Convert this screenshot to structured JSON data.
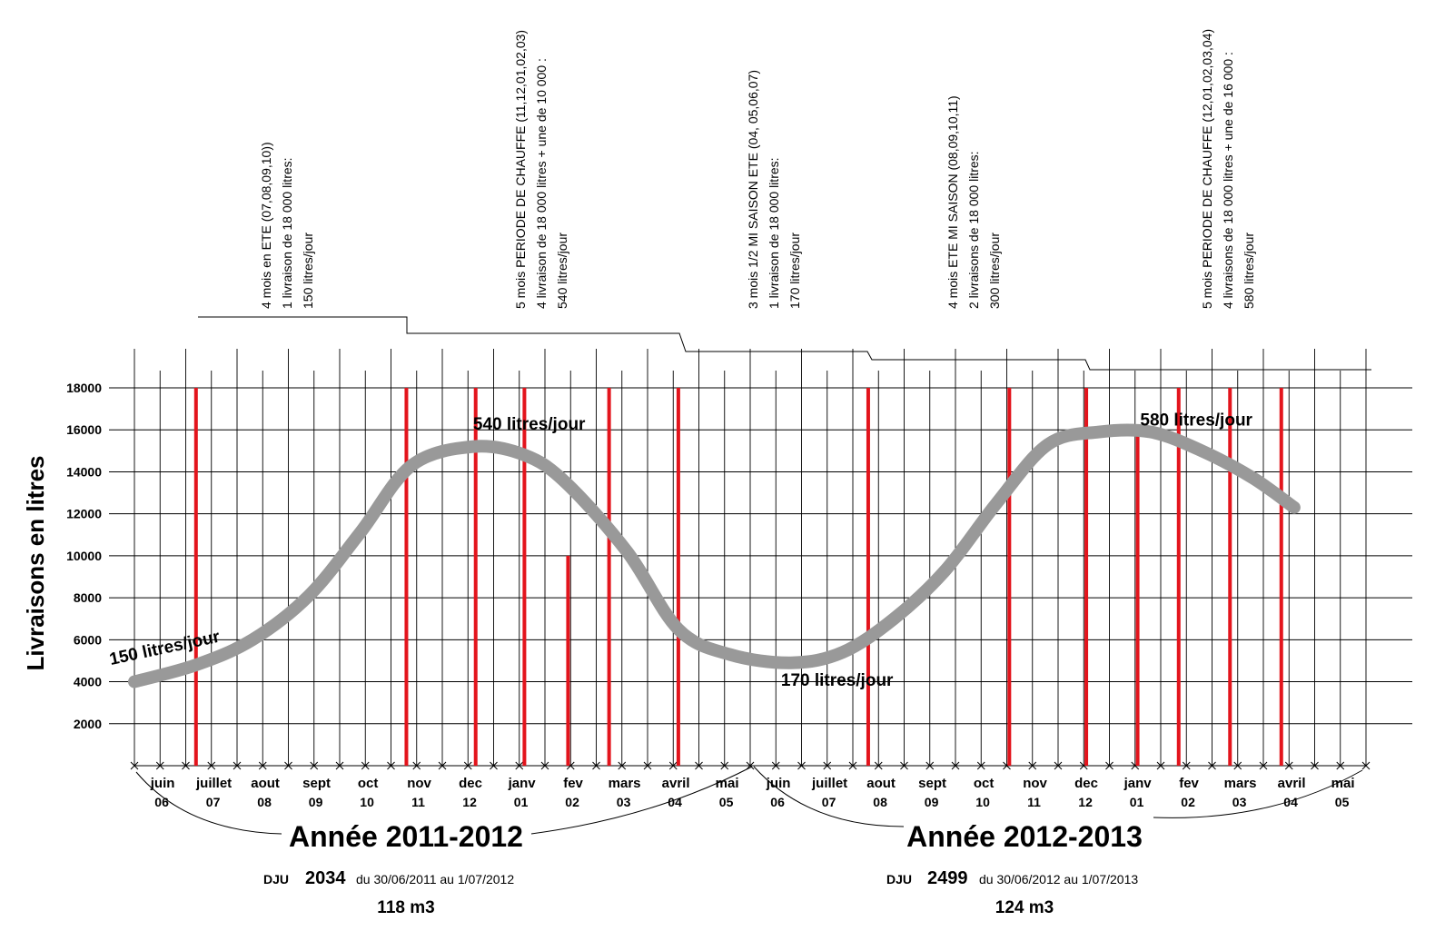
{
  "chart_data": {
    "type": "line",
    "ylabel": "Livraisons en litres",
    "xlabel": "",
    "title": "",
    "ylim": [
      0,
      18000
    ],
    "y_ticks": [
      2000,
      4000,
      6000,
      8000,
      10000,
      12000,
      14000,
      16000,
      18000
    ],
    "grid": true,
    "categories": [
      {
        "month": "juin",
        "num": "06"
      },
      {
        "month": "juillet",
        "num": "07"
      },
      {
        "month": "aout",
        "num": "08"
      },
      {
        "month": "sept",
        "num": "09"
      },
      {
        "month": "oct",
        "num": "10"
      },
      {
        "month": "nov",
        "num": "11"
      },
      {
        "month": "dec",
        "num": "12"
      },
      {
        "month": "janv",
        "num": "01"
      },
      {
        "month": "fev",
        "num": "02"
      },
      {
        "month": "mars",
        "num": "03"
      },
      {
        "month": "avril",
        "num": "04"
      },
      {
        "month": "mai",
        "num": "05"
      },
      {
        "month": "juin",
        "num": "06"
      },
      {
        "month": "juillet",
        "num": "07"
      },
      {
        "month": "aout",
        "num": "08"
      },
      {
        "month": "sept",
        "num": "09"
      },
      {
        "month": "oct",
        "num": "10"
      },
      {
        "month": "nov",
        "num": "11"
      },
      {
        "month": "dec",
        "num": "12"
      },
      {
        "month": "janv",
        "num": "01"
      },
      {
        "month": "fev",
        "num": "02"
      },
      {
        "month": "mars",
        "num": "03"
      },
      {
        "month": "avril",
        "num": "04"
      },
      {
        "month": "mai",
        "num": "05"
      }
    ],
    "series": [
      {
        "color": "#999999",
        "points": [
          [
            0.0,
            4000
          ],
          [
            1.2,
            4800
          ],
          [
            2.3,
            6000
          ],
          [
            3.4,
            8100
          ],
          [
            4.4,
            11100
          ],
          [
            5.4,
            14300
          ],
          [
            6.6,
            15200
          ],
          [
            7.6,
            14800
          ],
          [
            8.4,
            13500
          ],
          [
            9.6,
            10200
          ],
          [
            10.6,
            6500
          ],
          [
            11.6,
            5300
          ],
          [
            12.8,
            4900
          ],
          [
            13.8,
            5400
          ],
          [
            14.8,
            7000
          ],
          [
            15.8,
            9300
          ],
          [
            16.8,
            12500
          ],
          [
            17.8,
            15300
          ],
          [
            18.8,
            15900
          ],
          [
            19.8,
            15900
          ],
          [
            20.8,
            15000
          ],
          [
            21.8,
            13700
          ],
          [
            22.6,
            12300
          ]
        ]
      }
    ],
    "deliveries": [
      {
        "x": 1.2,
        "value": 18000
      },
      {
        "x": 5.3,
        "value": 18000
      },
      {
        "x": 6.65,
        "value": 18000
      },
      {
        "x": 7.6,
        "value": 18000
      },
      {
        "x": 8.45,
        "value": 10000
      },
      {
        "x": 9.25,
        "value": 18000
      },
      {
        "x": 10.6,
        "value": 18000
      },
      {
        "x": 14.3,
        "value": 18000
      },
      {
        "x": 17.05,
        "value": 18000
      },
      {
        "x": 18.55,
        "value": 18000
      },
      {
        "x": 19.55,
        "value": 16000
      },
      {
        "x": 20.35,
        "value": 18000
      },
      {
        "x": 21.35,
        "value": 18000
      },
      {
        "x": 22.35,
        "value": 18000
      }
    ],
    "rate_labels": [
      {
        "text": "150 litres/jour",
        "x": 0.0,
        "y": 4800
      },
      {
        "text": "540 litres/jour",
        "x": 6.6,
        "y": 16000
      },
      {
        "text": "170 litres/jour",
        "x": 12.6,
        "y": 3800
      },
      {
        "text": "580 litres/jour",
        "x": 19.6,
        "y": 16200
      }
    ],
    "periods": [
      {
        "lines": [
          "4 mois en ETE  (07,08,09,10))",
          "1 livraison de 18 000 litres:",
          "150 litres/jour"
        ]
      },
      {
        "lines": [
          "5 mois PERIODE DE CHAUFFE  (11,12,01,02,03)",
          "4 livraison de 18 000 litres + une de 10 000 :",
          "540 litres/jour"
        ]
      },
      {
        "lines": [
          "3 mois 1/2 MI SAISON ETE (04, 05,06,07)",
          "1 livraison de 18 000 litres:",
          "170 litres/jour"
        ]
      },
      {
        "lines": [
          "4 mois ETE  MI SAISON  (08,09,10,11)",
          "2 livraisons de 18 000 litres:",
          "300 litres/jour"
        ]
      },
      {
        "lines": [
          "5 mois PERIODE DE CHAUFFE  (12,01,02,03,04)",
          "4 livraisons de 18 000 litres + une de 16 000 :",
          "580 litres/jour"
        ]
      }
    ],
    "years": [
      {
        "title": "Année 2011-2012",
        "dju_label": "DJU",
        "dju_value": "2034",
        "period": "du 30/06/2011 au 1/07/2012",
        "volume": "118 m3"
      },
      {
        "title": "Année 2012-2013",
        "dju_label": "DJU",
        "dju_value": "2499",
        "period": "du 30/06/2012 au 1/07/2013",
        "volume": "124 m3"
      }
    ]
  }
}
